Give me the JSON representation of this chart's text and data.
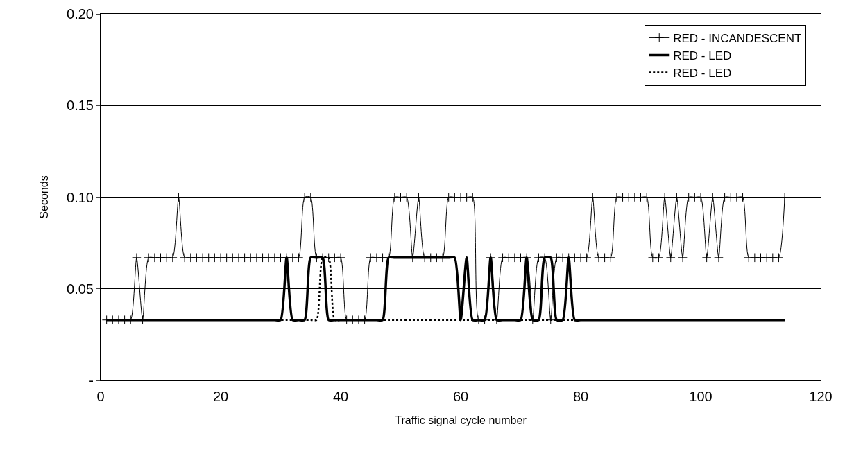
{
  "chart_data": {
    "type": "line",
    "xlabel": "Traffic signal cycle number",
    "ylabel": "Seconds",
    "x": [
      1,
      2,
      3,
      4,
      5,
      6,
      7,
      8,
      9,
      10,
      11,
      12,
      13,
      14,
      15,
      16,
      17,
      18,
      19,
      20,
      21,
      22,
      23,
      24,
      25,
      26,
      27,
      28,
      29,
      30,
      31,
      32,
      33,
      34,
      35,
      36,
      37,
      38,
      39,
      40,
      41,
      42,
      43,
      44,
      45,
      46,
      47,
      48,
      49,
      50,
      51,
      52,
      53,
      54,
      55,
      56,
      57,
      58,
      59,
      60,
      61,
      62,
      63,
      64,
      65,
      66,
      67,
      68,
      69,
      70,
      71,
      72,
      73,
      74,
      75,
      76,
      77,
      78,
      79,
      80,
      81,
      82,
      83,
      84,
      85,
      86,
      87,
      88,
      89,
      90,
      91,
      92,
      93,
      94,
      95,
      96,
      97,
      98,
      99,
      100,
      101,
      102,
      103,
      104,
      105,
      106,
      107,
      108,
      109,
      110,
      111,
      112,
      113,
      114
    ],
    "series": [
      {
        "name": "RED - INCANDESCENT",
        "color": "#000000",
        "marker": "cross",
        "line_style": "solid",
        "values": [
          0.033,
          0.033,
          0.033,
          0.033,
          0.033,
          0.067,
          0.033,
          0.067,
          0.067,
          0.067,
          0.067,
          0.067,
          0.1,
          0.067,
          0.067,
          0.067,
          0.067,
          0.067,
          0.067,
          0.067,
          0.067,
          0.067,
          0.067,
          0.067,
          0.067,
          0.067,
          0.067,
          0.067,
          0.067,
          0.067,
          0.067,
          0.067,
          0.067,
          0.1,
          0.1,
          0.067,
          0.067,
          0.067,
          0.067,
          0.067,
          0.033,
          0.033,
          0.033,
          0.033,
          0.067,
          0.067,
          0.067,
          0.067,
          0.1,
          0.1,
          0.1,
          0.067,
          0.1,
          0.067,
          0.067,
          0.067,
          0.067,
          0.1,
          0.1,
          0.1,
          0.1,
          0.1,
          0.033,
          0.033,
          0.067,
          0.033,
          0.067,
          0.067,
          0.067,
          0.067,
          0.067,
          0.033,
          0.067,
          0.067,
          0.033,
          0.067,
          0.067,
          0.067,
          0.067,
          0.067,
          0.067,
          0.1,
          0.067,
          0.067,
          0.067,
          0.1,
          0.1,
          0.1,
          0.1,
          0.1,
          0.1,
          0.067,
          0.067,
          0.1,
          0.067,
          0.1,
          0.067,
          0.1,
          0.1,
          0.1,
          0.067,
          0.1,
          0.067,
          0.1,
          0.1,
          0.1,
          0.1,
          0.067,
          0.067,
          0.067,
          0.067,
          0.067,
          0.067,
          0.1
        ]
      },
      {
        "name": "RED - LED",
        "color": "#000000",
        "marker": "none",
        "line_style": "solid",
        "values": [
          0.033,
          0.033,
          0.033,
          0.033,
          0.033,
          0.033,
          0.033,
          0.033,
          0.033,
          0.033,
          0.033,
          0.033,
          0.033,
          0.033,
          0.033,
          0.033,
          0.033,
          0.033,
          0.033,
          0.033,
          0.033,
          0.033,
          0.033,
          0.033,
          0.033,
          0.033,
          0.033,
          0.033,
          0.033,
          0.033,
          0.067,
          0.033,
          0.033,
          0.033,
          0.067,
          0.067,
          0.067,
          0.033,
          0.033,
          0.033,
          0.033,
          0.033,
          0.033,
          0.033,
          0.033,
          0.033,
          0.033,
          0.067,
          0.067,
          0.067,
          0.067,
          0.067,
          0.067,
          0.067,
          0.067,
          0.067,
          0.067,
          0.067,
          0.067,
          0.033,
          0.067,
          0.033,
          0.033,
          0.033,
          0.067,
          0.033,
          0.033,
          0.033,
          0.033,
          0.033,
          0.067,
          0.033,
          0.033,
          0.067,
          0.067,
          0.033,
          0.033,
          0.067,
          0.033,
          0.033,
          0.033,
          0.033,
          0.033,
          0.033,
          0.033,
          0.033,
          0.033,
          0.033,
          0.033,
          0.033,
          0.033,
          0.033,
          0.033,
          0.033,
          0.033,
          0.033,
          0.033,
          0.033,
          0.033,
          0.033,
          0.033,
          0.033,
          0.033,
          0.033,
          0.033,
          0.033,
          0.033,
          0.033,
          0.033,
          0.033,
          0.033,
          0.033,
          0.033,
          0.033
        ]
      },
      {
        "name": "RED - LED",
        "color": "#000000",
        "marker": "none",
        "line_style": "dotted",
        "values": [
          0.033,
          0.033,
          0.033,
          0.033,
          0.033,
          0.033,
          0.033,
          0.033,
          0.033,
          0.033,
          0.033,
          0.033,
          0.033,
          0.033,
          0.033,
          0.033,
          0.033,
          0.033,
          0.033,
          0.033,
          0.033,
          0.033,
          0.033,
          0.033,
          0.033,
          0.033,
          0.033,
          0.033,
          0.033,
          0.033,
          0.033,
          0.033,
          0.033,
          0.033,
          0.033,
          0.033,
          0.067,
          0.067,
          0.033,
          0.033,
          0.033,
          0.033,
          0.033,
          0.033,
          0.033,
          0.033,
          0.033,
          0.033,
          0.033,
          0.033,
          0.033,
          0.033,
          0.033,
          0.033,
          0.033,
          0.033,
          0.033,
          0.033,
          0.033,
          0.033,
          0.033,
          0.033,
          0.033,
          0.033,
          0.033,
          0.033,
          0.033,
          0.033,
          0.033,
          0.033,
          0.033,
          0.033,
          0.033,
          0.033,
          0.033,
          0.033,
          0.033,
          0.033,
          0.033,
          0.033,
          0.033,
          0.033,
          0.033,
          0.033,
          0.033,
          0.033,
          0.033,
          0.033,
          0.033,
          0.033,
          0.033,
          0.033,
          0.033,
          0.033,
          0.033,
          0.033,
          0.033,
          0.033,
          0.033,
          0.033,
          0.033,
          0.033,
          0.033,
          0.033,
          0.033,
          0.033,
          0.033,
          0.033,
          0.033,
          0.033,
          0.033,
          0.033,
          0.033,
          0.033
        ]
      }
    ],
    "xlim": [
      0,
      120
    ],
    "xticks": [
      0,
      20,
      40,
      60,
      80,
      100,
      120
    ],
    "ylim": [
      0,
      0.2
    ],
    "yticks": [
      {
        "value": 0,
        "label": "-"
      },
      {
        "value": 0.05,
        "label": "0.05"
      },
      {
        "value": 0.1,
        "label": "0.10"
      },
      {
        "value": 0.15,
        "label": "0.15"
      },
      {
        "value": 0.2,
        "label": "0.20"
      }
    ],
    "grid": "y",
    "legend": "top right"
  }
}
